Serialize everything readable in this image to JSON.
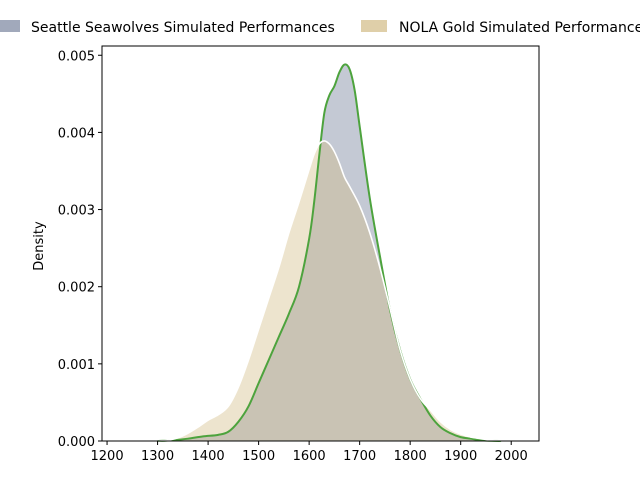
{
  "chart_data": {
    "type": "area",
    "title": "",
    "xlabel": "",
    "ylabel": "Density",
    "xlim": [
      1190,
      2055
    ],
    "ylim": [
      0,
      0.00512
    ],
    "x_ticks": [
      1200,
      1300,
      1400,
      1500,
      1600,
      1700,
      1800,
      1900,
      2000
    ],
    "x_tick_labels": [
      "1200",
      "1300",
      "1400",
      "1500",
      "1600",
      "1700",
      "1800",
      "1900",
      "2000"
    ],
    "y_ticks": [
      0,
      0.001,
      0.002,
      0.003,
      0.004,
      0.005
    ],
    "y_tick_labels": [
      "0.000",
      "0.001",
      "0.002",
      "0.003",
      "0.004",
      "0.005"
    ],
    "grid": false,
    "legend_position": "top",
    "series": [
      {
        "name": "Seattle Seawolves Simulated Performances",
        "fill_color": "#8a93aa",
        "line_color": "#4da33d",
        "points": [
          [
            1300,
            0
          ],
          [
            1330,
            1e-05
          ],
          [
            1360,
            3e-05
          ],
          [
            1390,
            6e-05
          ],
          [
            1420,
            8e-05
          ],
          [
            1440,
            0.00012
          ],
          [
            1460,
            0.00025
          ],
          [
            1480,
            0.00045
          ],
          [
            1500,
            0.00075
          ],
          [
            1520,
            0.00105
          ],
          [
            1540,
            0.00135
          ],
          [
            1560,
            0.00165
          ],
          [
            1580,
            0.002
          ],
          [
            1600,
            0.00262
          ],
          [
            1610,
            0.0031
          ],
          [
            1620,
            0.0037
          ],
          [
            1630,
            0.00425
          ],
          [
            1640,
            0.00448
          ],
          [
            1650,
            0.0046
          ],
          [
            1660,
            0.00478
          ],
          [
            1670,
            0.00488
          ],
          [
            1680,
            0.00482
          ],
          [
            1690,
            0.00455
          ],
          [
            1700,
            0.00408
          ],
          [
            1720,
            0.00315
          ],
          [
            1740,
            0.0024
          ],
          [
            1760,
            0.0017
          ],
          [
            1780,
            0.00118
          ],
          [
            1800,
            0.0008
          ],
          [
            1820,
            0.00055
          ],
          [
            1840,
            0.00033
          ],
          [
            1860,
            0.00018
          ],
          [
            1880,
            0.0001
          ],
          [
            1900,
            5e-05
          ],
          [
            1920,
            3e-05
          ],
          [
            1940,
            1e-05
          ],
          [
            1960,
            3e-06
          ],
          [
            1980,
            0
          ]
        ]
      },
      {
        "name": "NOLA Gold Simulated Performances",
        "fill_color": "#d2bb84",
        "line_color": "#ffffff",
        "points": [
          [
            1300,
            0
          ],
          [
            1320,
            1e-05
          ],
          [
            1340,
            4e-05
          ],
          [
            1360,
            0.0001
          ],
          [
            1380,
            0.00018
          ],
          [
            1400,
            0.00027
          ],
          [
            1420,
            0.00034
          ],
          [
            1440,
            0.00045
          ],
          [
            1460,
            0.0007
          ],
          [
            1480,
            0.00105
          ],
          [
            1500,
            0.00145
          ],
          [
            1520,
            0.00185
          ],
          [
            1540,
            0.00225
          ],
          [
            1560,
            0.0027
          ],
          [
            1580,
            0.0031
          ],
          [
            1600,
            0.00352
          ],
          [
            1610,
            0.00372
          ],
          [
            1620,
            0.00385
          ],
          [
            1630,
            0.00389
          ],
          [
            1640,
            0.00385
          ],
          [
            1650,
            0.00375
          ],
          [
            1660,
            0.0036
          ],
          [
            1670,
            0.00342
          ],
          [
            1680,
            0.0033
          ],
          [
            1700,
            0.00305
          ],
          [
            1720,
            0.0027
          ],
          [
            1740,
            0.00225
          ],
          [
            1760,
            0.00172
          ],
          [
            1780,
            0.00118
          ],
          [
            1800,
            0.0008
          ],
          [
            1820,
            0.00055
          ],
          [
            1840,
            0.0004
          ],
          [
            1860,
            0.00025
          ],
          [
            1880,
            0.00015
          ],
          [
            1900,
            9e-05
          ],
          [
            1920,
            5e-05
          ],
          [
            1940,
            3e-05
          ],
          [
            1960,
            1e-05
          ],
          [
            1980,
            3e-06
          ],
          [
            2000,
            0
          ]
        ]
      }
    ]
  }
}
